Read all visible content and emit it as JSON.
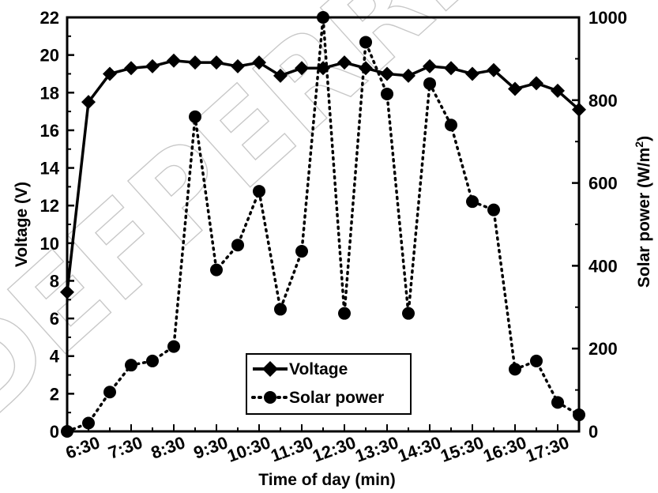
{
  "watermark": "DEFPERREVIEW",
  "chart_data": {
    "type": "line",
    "xlabel": "Time of day (min)",
    "ylabel_left": "Voltage (V)",
    "ylabel_right_main": "Solar power (W/m",
    "ylabel_right_sup": "2",
    "ylabel_right_end": ")",
    "x_tick_labels": [
      "6:30",
      "7:30",
      "8:30",
      "9:30",
      "10:30",
      "11:30",
      "12:30",
      "13:30",
      "14:30",
      "15:30",
      "16:30",
      "17:30"
    ],
    "left_axis": {
      "ylim": [
        0,
        22
      ],
      "ticks": [
        0,
        2,
        4,
        6,
        8,
        10,
        12,
        14,
        16,
        18,
        20,
        22
      ]
    },
    "right_axis": {
      "ylim": [
        0,
        1000
      ],
      "ticks": [
        0,
        200,
        400,
        600,
        800,
        1000
      ]
    },
    "legend": {
      "placement": "lower-center",
      "entries": [
        "Voltage",
        "Solar power"
      ]
    },
    "series": [
      {
        "name": "Voltage",
        "axis": "left",
        "style": "solid",
        "marker": "diamond",
        "values": [
          7.4,
          17.5,
          19.0,
          19.3,
          19.4,
          19.7,
          19.6,
          19.6,
          19.4,
          19.6,
          18.9,
          19.3,
          19.3,
          19.6,
          19.3,
          19.0,
          18.9,
          19.4,
          19.3,
          19.0,
          19.2,
          18.2,
          18.5,
          18.1,
          17.1
        ]
      },
      {
        "name": "Solar power",
        "axis": "right",
        "style": "dotted",
        "marker": "circle",
        "values": [
          0,
          20,
          95,
          160,
          170,
          205,
          760,
          390,
          450,
          580,
          295,
          435,
          1000,
          285,
          940,
          815,
          285,
          840,
          740,
          555,
          535,
          150,
          170,
          70,
          40
        ]
      }
    ]
  }
}
